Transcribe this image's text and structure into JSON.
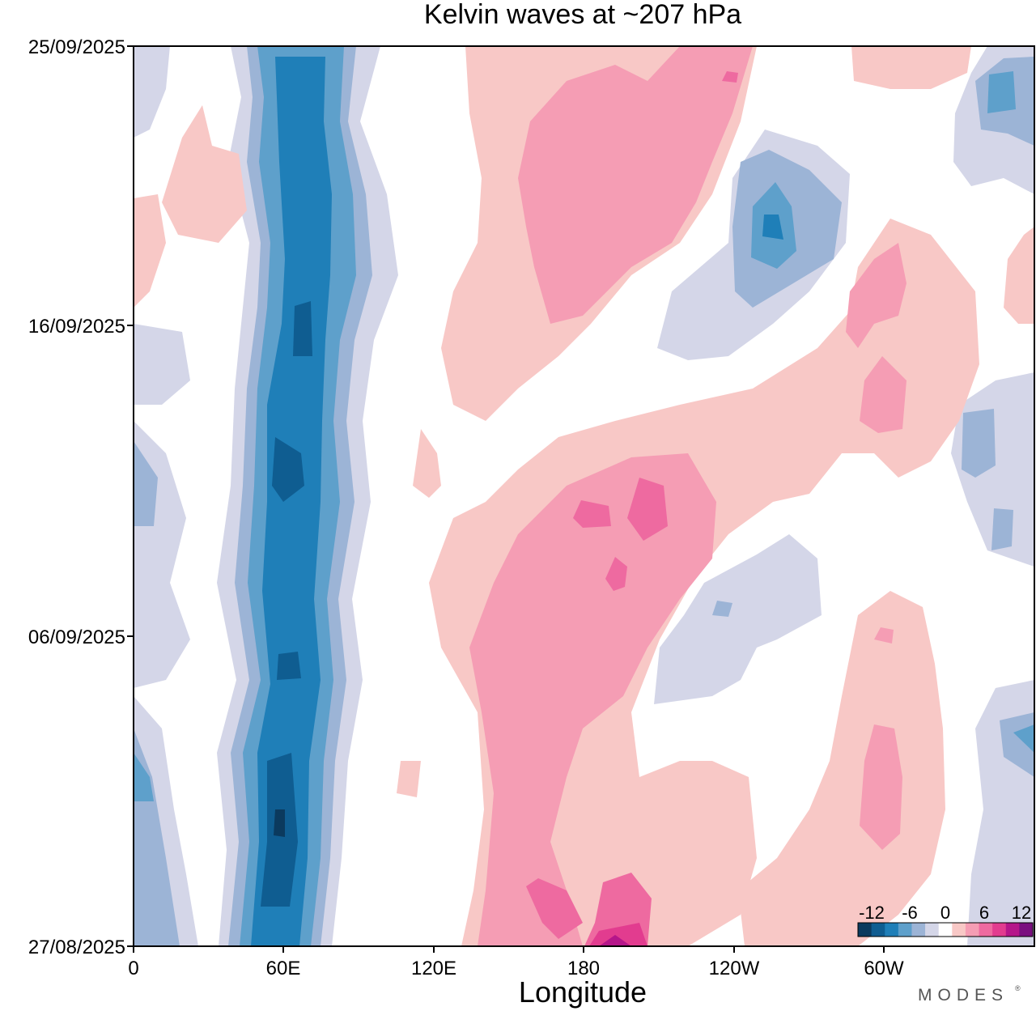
{
  "chart_data": {
    "type": "heatmap",
    "title": "Kelvin waves at ~207 hPa",
    "xlabel": "Longitude",
    "ylabel": "",
    "x_ticks": [
      "0",
      "60E",
      "120E",
      "180",
      "120W",
      "60W"
    ],
    "x_range": [
      0,
      360
    ],
    "y_ticks": [
      "25/09/2025",
      "16/09/2025",
      "06/09/2025",
      "27/08/2025"
    ],
    "y_range": [
      "27/08/2025",
      "25/09/2025"
    ],
    "colorbar": {
      "labels": [
        "-12",
        "-6",
        "0",
        "6",
        "12"
      ],
      "levels": [
        -14,
        -12,
        -10,
        -8,
        -6,
        -4,
        -2,
        2,
        4,
        6,
        8,
        10,
        12,
        14
      ],
      "colors": [
        "#0b3a5e",
        "#0f5d91",
        "#1f7fb8",
        "#5ea0cb",
        "#9cb4d6",
        "#d4d6e8",
        "#ffffff",
        "#f8c8c6",
        "#f59db4",
        "#ee6aa0",
        "#e23c8f",
        "#b5168a",
        "#7a0f80"
      ],
      "position": "bottom-right"
    },
    "grid": false,
    "features": [
      {
        "name": "negative band near 60E",
        "value_range": [
          -14,
          -2
        ],
        "points": [
          [
            55,
            "27/08/2025"
          ],
          [
            57,
            "01/09/2025"
          ],
          [
            59,
            "06/09/2025"
          ],
          [
            55,
            "11/09/2025"
          ],
          [
            68,
            "16/09/2025"
          ],
          [
            66,
            "21/09/2025"
          ],
          [
            62,
            "25/09/2025"
          ]
        ]
      },
      {
        "name": "positive pattern 150E-150W",
        "value_range": [
          2,
          12
        ],
        "points": [
          [
            185,
            "27/08/2025"
          ],
          [
            178,
            "02/09/2025"
          ],
          [
            195,
            "08/09/2025"
          ],
          [
            205,
            "11/09/2025"
          ],
          [
            240,
            "20/09/2025"
          ],
          [
            225,
            "25/09/2025"
          ]
        ]
      },
      {
        "name": "negative cell near 140W",
        "value_range": [
          -10,
          -2
        ],
        "points": [
          [
            255,
            "19/09/2025"
          ]
        ]
      },
      {
        "name": "positive band 120W-60W",
        "value_range": [
          2,
          8
        ],
        "points": [
          [
            300,
            "14/09/2025"
          ],
          [
            335,
            "18/09/2025"
          ],
          [
            330,
            "01/09/2025"
          ]
        ]
      }
    ]
  },
  "branding": {
    "text": "MODES",
    "mark": "®"
  }
}
